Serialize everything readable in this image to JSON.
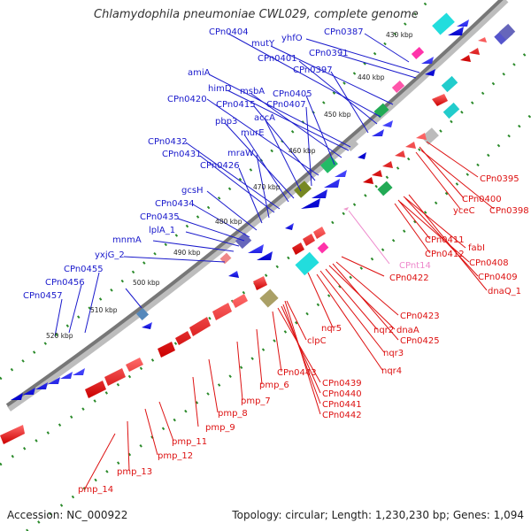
{
  "title": "Chlamydophila pneumoniae CWL029, complete genome",
  "footer": {
    "accession": "Accession: NC_000922",
    "summary": "Topology: circular; Length: 1,230,230 bp; Genes: 1,094"
  },
  "colors": {
    "forward_label": "#1a1acc",
    "reverse_label": "#dd1111",
    "rna_label": "#ee88cc",
    "backbone": "#777777",
    "tick_dots": "#2a8a2a"
  },
  "scale_labels": [
    "430 kbp",
    "440 kbp",
    "450 kbp",
    "460 kbp",
    "470 kbp",
    "480 kbp",
    "490 kbp",
    "500 kbp",
    "510 kbp",
    "520 kbp"
  ],
  "forward_genes": [
    "CPn0387",
    "yhfO",
    "CPn0391",
    "mutY",
    "CPn0404",
    "CPn0401",
    "CPn0397",
    "amiA",
    "himD",
    "msbA",
    "CPn0405",
    "CPn0420",
    "CPn0415",
    "CPn0407",
    "accA",
    "pbp3",
    "murE",
    "CPn0432",
    "CPn0431",
    "mraW",
    "CPn0426",
    "gcsH",
    "CPn0434",
    "CPn0435",
    "lplA_1",
    "mnmA",
    "yxjG_2",
    "CPn0455",
    "CPn0456",
    "CPn0457"
  ],
  "reverse_genes": [
    "CPn0395",
    "CPn0400",
    "yceC",
    "CPn0398",
    "CPn0411",
    "fabI",
    "CPn0412",
    "CPn0408",
    "CPn0409",
    "dnaQ_1",
    "CPn0422",
    "CPn0423",
    "nqr5",
    "nqr2",
    "dnaA",
    "CPn0425",
    "nqr3",
    "nqr4",
    "clpC",
    "CPn0443",
    "CPn0439",
    "CPn0440",
    "CPn0441",
    "CPn0442",
    "pmp_6",
    "pmp_7",
    "pmp_8",
    "pmp_9",
    "pmp_11",
    "pmp_12",
    "pmp_13",
    "pmp_14"
  ],
  "rna_genes": [
    "CPnt14"
  ]
}
